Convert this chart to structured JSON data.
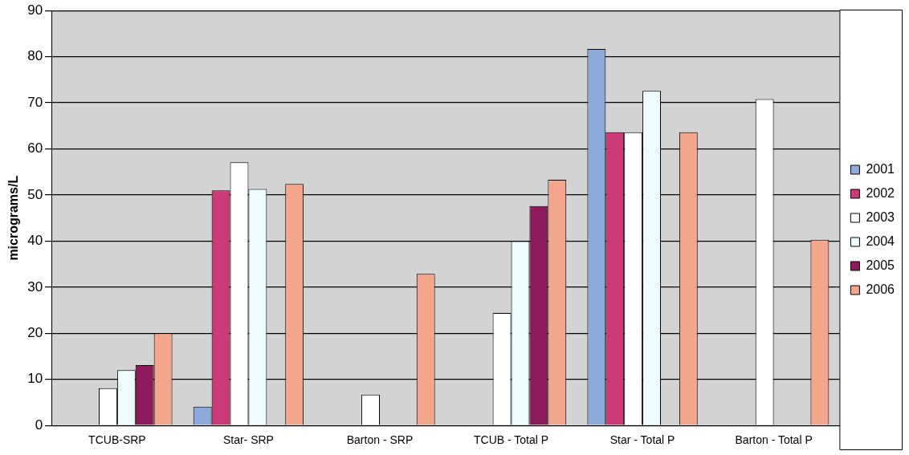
{
  "chart_data": {
    "type": "bar",
    "ylabel": "micrograms/L",
    "categories": [
      "TCUB-SRP",
      "Star- SRP",
      "Barton - SRP",
      "TCUB - Total P",
      "Star - Total P",
      "Barton - Total P"
    ],
    "series": [
      {
        "name": "2001",
        "color": "#8eaadb",
        "values": [
          null,
          4.1,
          null,
          null,
          81.7,
          null
        ]
      },
      {
        "name": "2002",
        "color": "#cc3a7a",
        "values": [
          null,
          51,
          null,
          null,
          63.6,
          null
        ]
      },
      {
        "name": "2003",
        "color": "#ffffff",
        "values": [
          8.1,
          57.1,
          6.7,
          24.4,
          63.6,
          70.8
        ]
      },
      {
        "name": "2004",
        "color": "#eefbff",
        "values": [
          12,
          51.3,
          null,
          40,
          72.6,
          null
        ]
      },
      {
        "name": "2005",
        "color": "#8c1a5c",
        "values": [
          13.1,
          null,
          null,
          47.6,
          null,
          null
        ]
      },
      {
        "name": "2006",
        "color": "#f4a68c",
        "values": [
          20,
          52.4,
          32.9,
          53.3,
          63.6,
          40.3
        ]
      }
    ],
    "ylim": [
      0,
      90
    ],
    "yticks": [
      0,
      10,
      20,
      30,
      40,
      50,
      60,
      70,
      80,
      90
    ],
    "grid": "y",
    "legend": "right"
  }
}
